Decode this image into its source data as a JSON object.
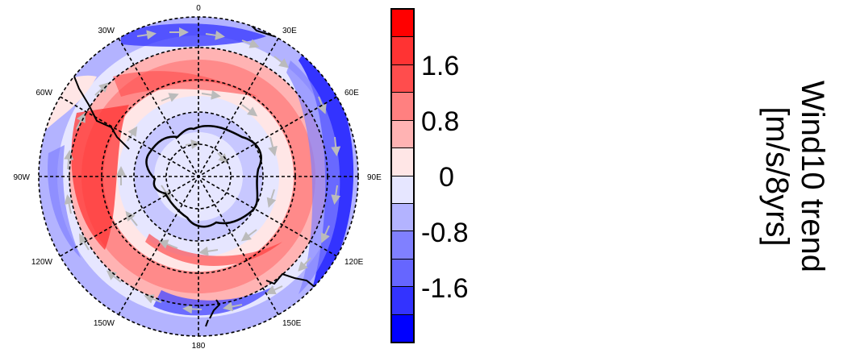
{
  "map": {
    "projection": "south-polar-stereographic",
    "longitude_labels": [
      "0",
      "30E",
      "60E",
      "90E",
      "120E",
      "150E",
      "180",
      "150W",
      "120W",
      "90W",
      "60W",
      "30W"
    ],
    "colors": {
      "strong_blue": "#0000ff",
      "blue": "#4d4dff",
      "mid_blue": "#8080ff",
      "light_blue": "#b3b3ff",
      "pale_blue": "#e6e6ff",
      "pale_red": "#ffe6e6",
      "light_red": "#ffb3b3",
      "red": "#ff8080",
      "strong_red": "#ff3333",
      "vector_color": "#bbbbbb",
      "coast_color": "#000000"
    }
  },
  "colorbar": {
    "swatches": [
      "#ff0000",
      "#ff3333",
      "#ff4d4d",
      "#ff8080",
      "#ffb3b3",
      "#ffe6e6",
      "#e6e6ff",
      "#b3b3ff",
      "#8080ff",
      "#6666ff",
      "#3333ff",
      "#0000ff"
    ],
    "labels": [
      "1.6",
      "0.8",
      "0",
      "-0.8",
      "-1.6"
    ]
  },
  "title": {
    "line1": "Wind10 trend",
    "line2": "[m/s/8yrs]"
  }
}
